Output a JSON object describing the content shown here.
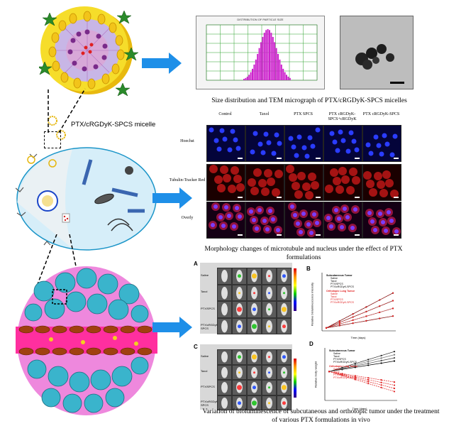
{
  "micelle_label": "PTX/cRGDyK-SPCS micelle",
  "panel1_caption": "Size distribution and TEM micrograph of PTX/cRGDyK-SPCS micelles",
  "histogram_title": "DISTRIBUTION OF PARTICLE SIZE",
  "microscopy": {
    "columns": [
      "Control",
      "Taxol",
      "PTX SPCS",
      "PTX cRGDyK-SPCS+cRGDyK",
      "PTX cRGDyK-SPCS"
    ],
    "rows": [
      "Hoechst",
      "Tubulin-Tracker Red",
      "Overly"
    ],
    "caption": "Morphology changes of microtubule and nucleus under the effect of PTX formulations"
  },
  "panelA": {
    "letter": "A",
    "rows": [
      "Saline",
      "Taxol",
      "PTX/SPCS",
      "PTX/cRGDyK-SPCS"
    ]
  },
  "panelB": {
    "letter": "B",
    "xlabel": "Time (days)",
    "ylabel": "Relative bioluminescence intensity",
    "legend_sub_title": "Subcutaneous Tumor",
    "legend_sub": [
      "Saline",
      "Taxol",
      "PTX/SPCS",
      "PTX/cRGDyK-SPCS"
    ],
    "legend_orth_title": "Orthotopic Lung Tumor",
    "legend_orth": [
      "Saline",
      "Taxol",
      "PTX/SPCS",
      "PTX/cRGDyK-SPCS"
    ]
  },
  "panelC": {
    "letter": "C",
    "rows": [
      "Saline",
      "Taxol",
      "PTX/SPCS",
      "PTX/cRGDyK-SPCS"
    ]
  },
  "panelD": {
    "letter": "D",
    "xlabel": "Time (days)",
    "ylabel": "Relative body weight",
    "legend_sub_title": "Subcutaneous Tumor",
    "legend_sub": [
      "Saline",
      "Taxol",
      "PTX/SPCS",
      "PTX/cRGDyK-SPCS"
    ],
    "legend_orth_title": "Orthotopic Lung Tumor",
    "legend_orth": [
      "Saline",
      "Taxol",
      "PTX/SPCS",
      "PTX/cRGDyK-SPCS"
    ]
  },
  "bottom_caption_line1": "Variation of bioluminescence of subcutaneous and orthotopic tumor under the treatment",
  "bottom_caption_line2": "of various PTX formulations in vivo",
  "colors": {
    "arrow": "#1e8fe8",
    "histogram_bar": "#cc22cc",
    "micelle_shell": "#f2d020",
    "cell_body": "#d6eef9",
    "tissue": "#ee88dd",
    "vessel": "#ff2f9f",
    "tumor_cell": "#3ab4cc"
  }
}
